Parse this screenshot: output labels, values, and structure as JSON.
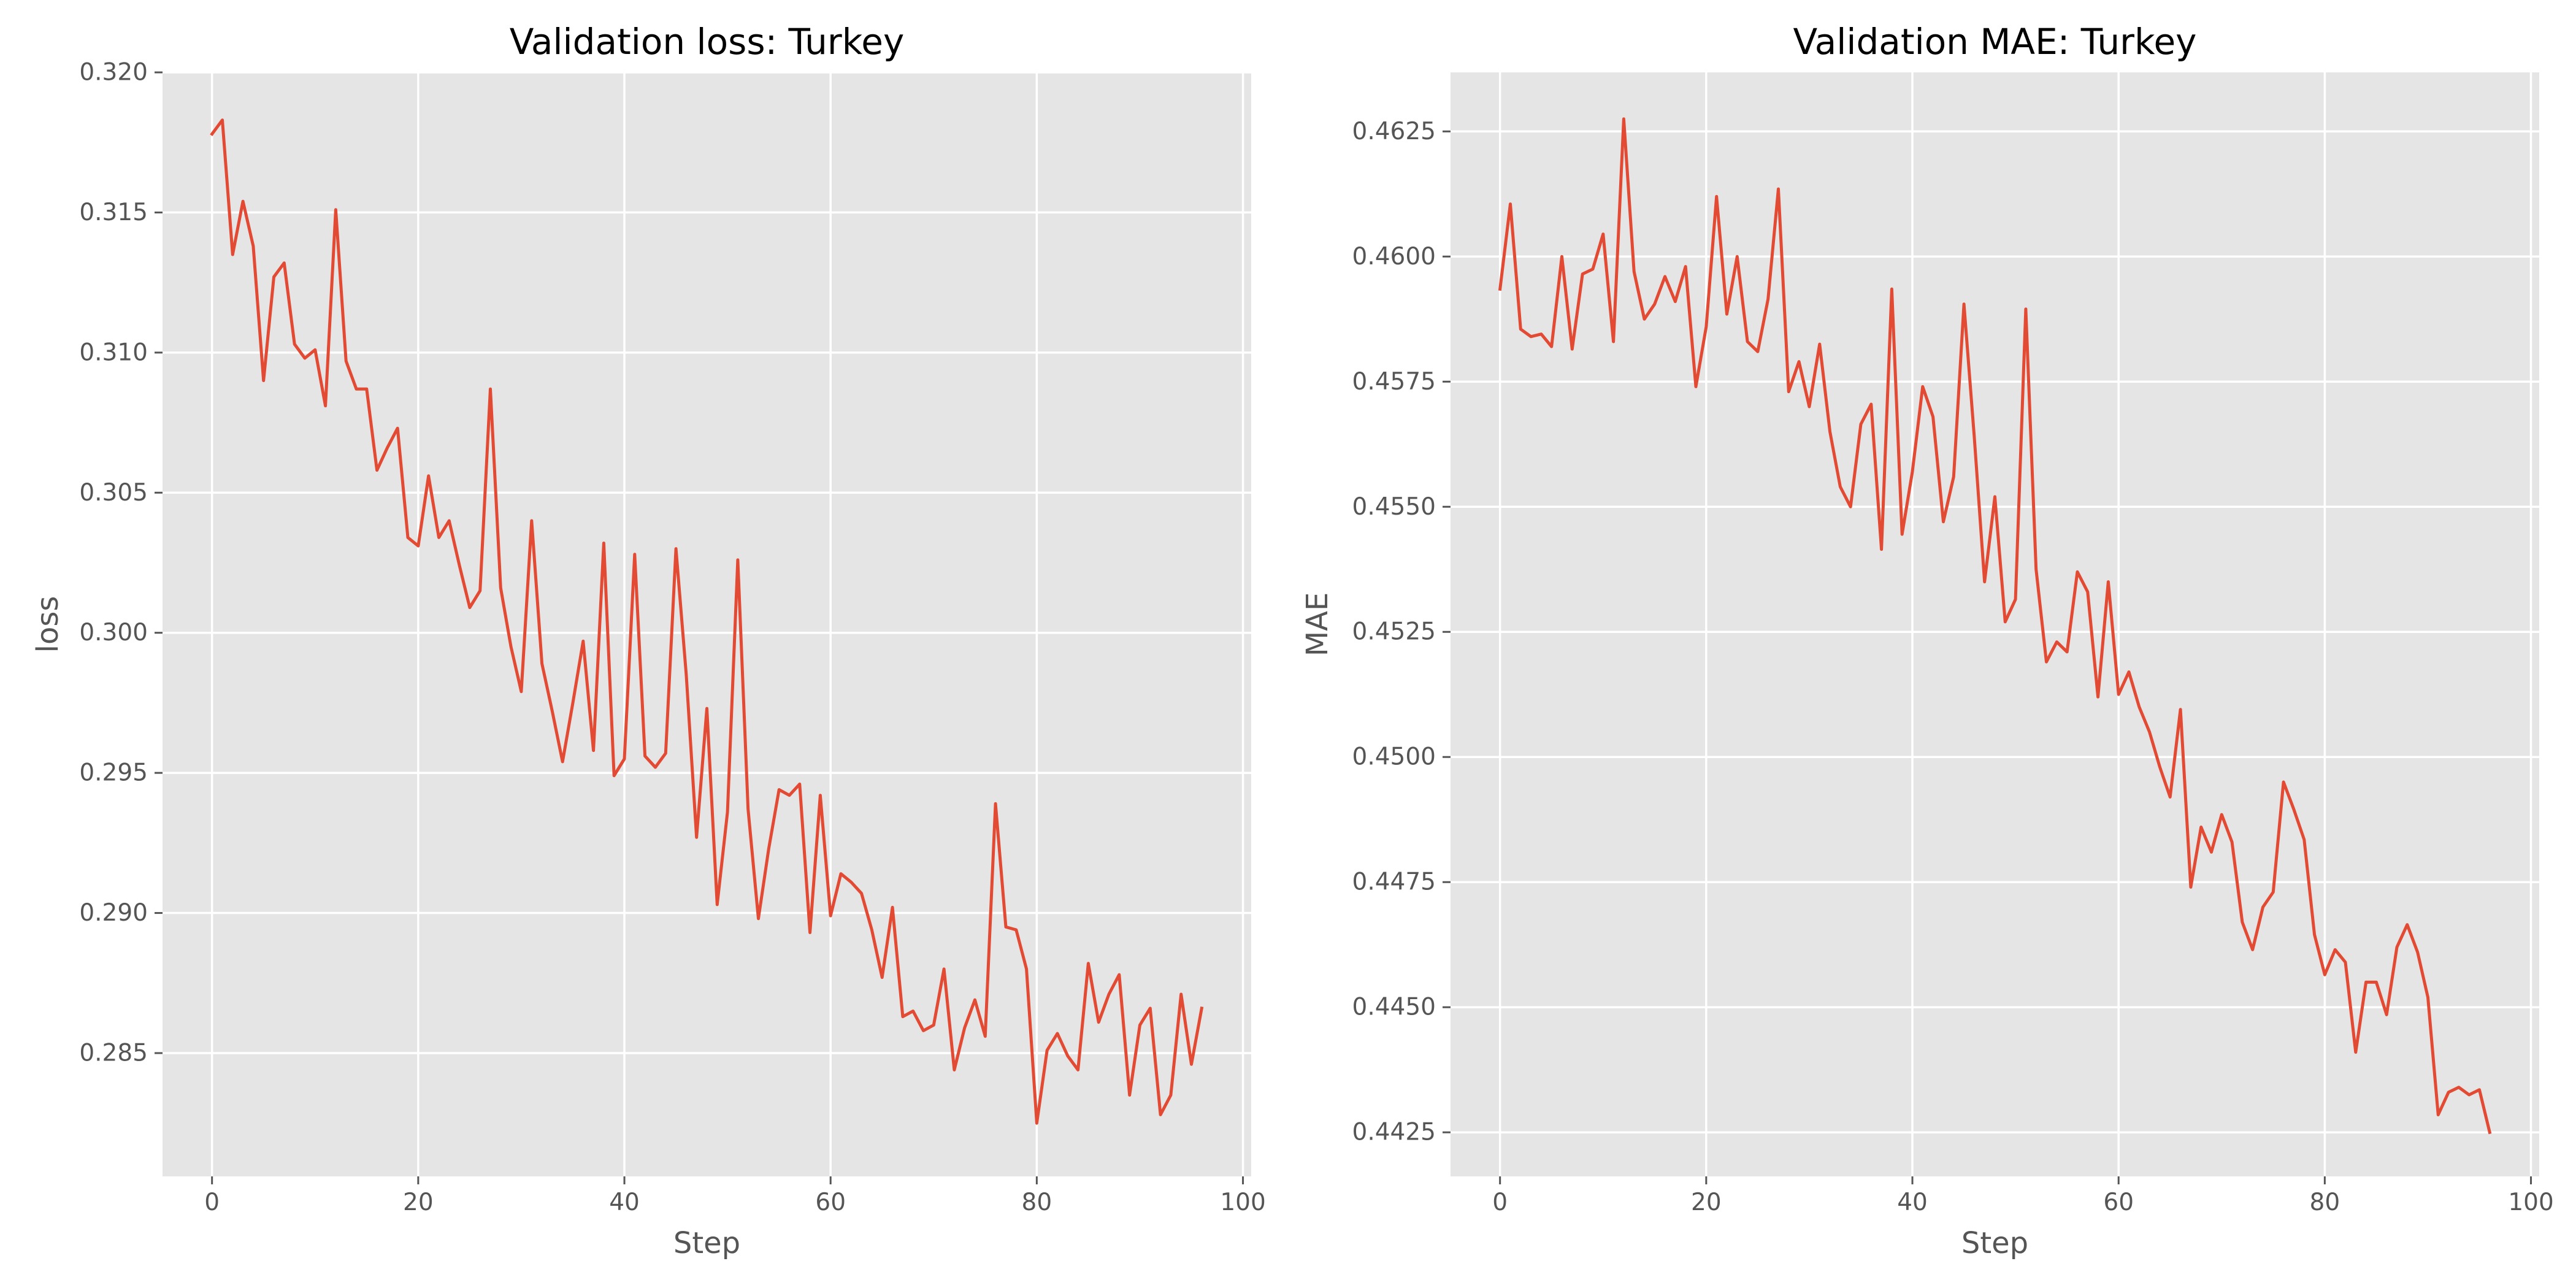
{
  "colors": {
    "panel_bg": "#E5E5E5",
    "grid": "#FFFFFF",
    "series": "#E24A33",
    "text": "#555555"
  },
  "chart_data": [
    {
      "type": "line",
      "title": "Validation loss: Turkey",
      "xlabel": "Step",
      "ylabel": "loss",
      "xlim": [
        -4.8,
        100.8
      ],
      "ylim": [
        0.2806,
        0.32
      ],
      "grid": true,
      "xticks": [
        0,
        20,
        40,
        60,
        80,
        100
      ],
      "yticks": [
        0.285,
        0.29,
        0.295,
        0.3,
        0.305,
        0.31,
        0.315,
        0.32
      ],
      "xtick_labels": [
        "0",
        "20",
        "40",
        "60",
        "80",
        "100"
      ],
      "ytick_labels": [
        "0.285",
        "0.290",
        "0.295",
        "0.300",
        "0.305",
        "0.310",
        "0.315",
        "0.320"
      ],
      "series": [
        {
          "x": [
            0,
            1,
            2,
            3,
            4,
            5,
            6,
            7,
            8,
            9,
            10,
            11,
            12,
            13,
            14,
            15,
            16,
            17,
            18,
            19,
            20,
            21,
            22,
            23,
            24,
            25,
            26,
            27,
            28,
            29,
            30,
            31,
            32,
            33,
            34,
            35,
            36,
            37,
            38,
            39,
            40,
            41,
            42,
            43,
            44,
            45,
            46,
            47,
            48,
            49,
            50,
            51,
            52,
            53,
            54,
            55,
            56,
            57,
            58,
            59,
            60,
            61,
            62,
            63,
            64,
            65,
            66,
            67,
            68,
            69,
            70,
            71,
            72,
            73,
            74,
            75,
            76,
            77,
            78,
            79,
            80,
            81,
            82,
            83,
            84,
            85,
            86,
            87,
            88,
            89,
            90,
            91,
            92,
            93,
            94,
            95,
            96
          ],
          "values": [
            0.3178,
            0.3183,
            0.3135,
            0.3154,
            0.3138,
            0.309,
            0.3127,
            0.3132,
            0.3103,
            0.3098,
            0.3101,
            0.3081,
            0.3151,
            0.3097,
            0.3087,
            0.3087,
            0.3058,
            0.3066,
            0.3073,
            0.3034,
            0.3031,
            0.3056,
            0.3034,
            0.304,
            0.3024,
            0.3009,
            0.3015,
            0.3087,
            0.3016,
            0.2995,
            0.2979,
            0.304,
            0.2989,
            0.2972,
            0.2954,
            0.2975,
            0.2997,
            0.2958,
            0.3032,
            0.2949,
            0.2955,
            0.3028,
            0.2956,
            0.2952,
            0.2957,
            0.303,
            0.2985,
            0.2927,
            0.2973,
            0.2903,
            0.2936,
            0.3026,
            0.2937,
            0.2898,
            0.2923,
            0.2944,
            0.2942,
            0.2946,
            0.2893,
            0.2942,
            0.2899,
            0.2914,
            0.2911,
            0.2907,
            0.2894,
            0.2877,
            0.2902,
            0.2863,
            0.2865,
            0.2858,
            0.286,
            0.288,
            0.2844,
            0.2859,
            0.2869,
            0.2856,
            0.2939,
            0.2895,
            0.2894,
            0.288,
            0.2825,
            0.2851,
            0.2857,
            0.2849,
            0.2844,
            0.2882,
            0.2861,
            0.2871,
            0.2878,
            0.2835,
            0.286,
            0.2866,
            0.2828,
            0.2835,
            0.2871,
            0.2846,
            0.2866
          ]
        }
      ]
    },
    {
      "type": "line",
      "title": "Validation MAE: Turkey",
      "xlabel": "Step",
      "ylabel": "MAE",
      "xlim": [
        -4.8,
        100.8
      ],
      "ylim": [
        0.44162,
        0.46368
      ],
      "grid": true,
      "xticks": [
        0,
        20,
        40,
        60,
        80,
        100
      ],
      "yticks": [
        0.4425,
        0.445,
        0.4475,
        0.45,
        0.4525,
        0.455,
        0.4575,
        0.46,
        0.4625
      ],
      "xtick_labels": [
        "0",
        "20",
        "40",
        "60",
        "80",
        "100"
      ],
      "ytick_labels": [
        "0.4425",
        "0.4450",
        "0.4475",
        "0.4500",
        "0.4525",
        "0.4550",
        "0.4575",
        "0.4600",
        "0.4625"
      ],
      "series": [
        {
          "x": [
            0,
            1,
            2,
            3,
            4,
            5,
            6,
            7,
            8,
            9,
            10,
            11,
            12,
            13,
            14,
            15,
            16,
            17,
            18,
            19,
            20,
            21,
            22,
            23,
            24,
            25,
            26,
            27,
            28,
            29,
            30,
            31,
            32,
            33,
            34,
            35,
            36,
            37,
            38,
            39,
            40,
            41,
            42,
            43,
            44,
            45,
            46,
            47,
            48,
            49,
            50,
            51,
            52,
            53,
            54,
            55,
            56,
            57,
            58,
            59,
            60,
            61,
            62,
            63,
            64,
            65,
            66,
            67,
            68,
            69,
            70,
            71,
            72,
            73,
            74,
            75,
            76,
            77,
            78,
            79,
            80,
            81,
            82,
            83,
            84,
            85,
            86,
            87,
            88,
            89,
            90,
            91,
            92,
            93,
            94,
            95,
            96
          ],
          "values": [
            0.45935,
            0.46105,
            0.45855,
            0.4584,
            0.45845,
            0.4582,
            0.46,
            0.45815,
            0.45965,
            0.45975,
            0.46045,
            0.4583,
            0.46275,
            0.4597,
            0.45875,
            0.45905,
            0.4596,
            0.4591,
            0.4598,
            0.4574,
            0.4586,
            0.4612,
            0.45885,
            0.46,
            0.4583,
            0.4581,
            0.45915,
            0.46135,
            0.4573,
            0.4579,
            0.457,
            0.45825,
            0.4565,
            0.4554,
            0.455,
            0.45665,
            0.45705,
            0.45415,
            0.45935,
            0.45445,
            0.4557,
            0.4574,
            0.4568,
            0.4547,
            0.4556,
            0.45905,
            0.4564,
            0.4535,
            0.4552,
            0.4527,
            0.45315,
            0.45895,
            0.45375,
            0.4519,
            0.4523,
            0.4521,
            0.4537,
            0.4533,
            0.4512,
            0.4535,
            0.45125,
            0.4517,
            0.451,
            0.4505,
            0.4498,
            0.4492,
            0.45095,
            0.4474,
            0.4486,
            0.4481,
            0.44885,
            0.4483,
            0.4467,
            0.44615,
            0.447,
            0.4473,
            0.4495,
            0.44895,
            0.44835,
            0.44645,
            0.44565,
            0.44615,
            0.4459,
            0.4441,
            0.4455,
            0.4455,
            0.44485,
            0.4462,
            0.44665,
            0.4461,
            0.4452,
            0.44285,
            0.4433,
            0.4434,
            0.44325,
            0.44335,
            0.4425
          ]
        }
      ]
    }
  ]
}
